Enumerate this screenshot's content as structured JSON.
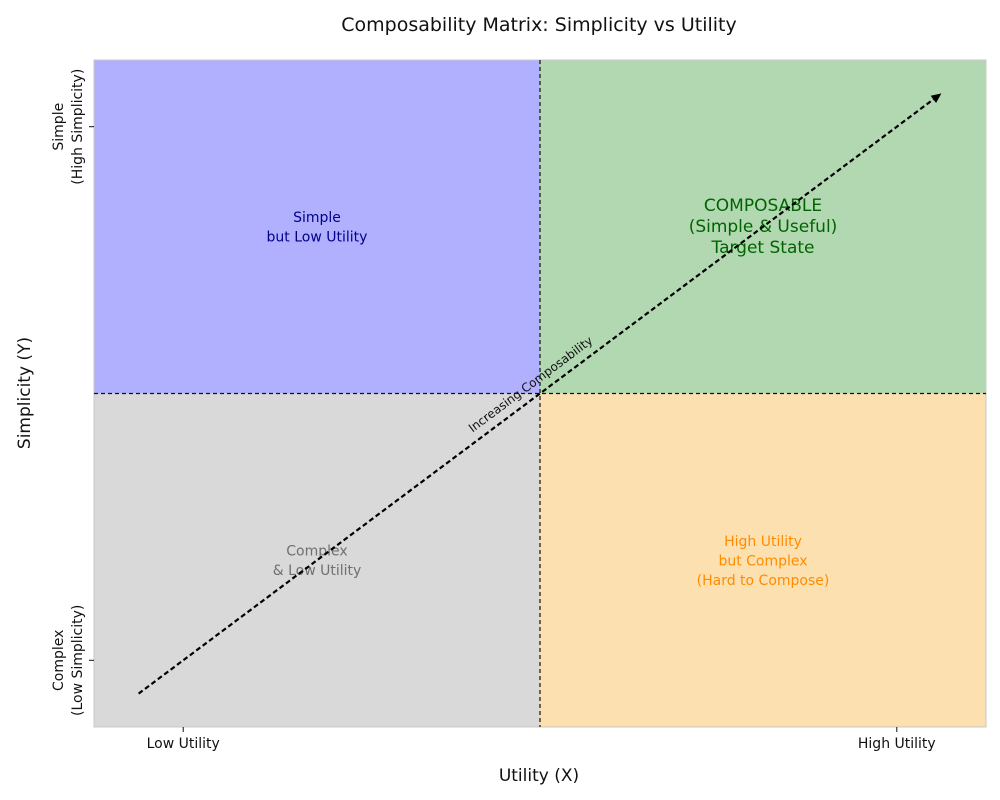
{
  "chart_data": {
    "type": "quadrant",
    "title": "Composability Matrix: Simplicity vs Utility",
    "xlabel": "Utility (X)",
    "ylabel": "Simplicity (Y)",
    "xlim": [
      0,
      10
    ],
    "ylim": [
      0,
      10
    ],
    "divider": {
      "x": 5,
      "y": 5
    },
    "x_ticks": [
      {
        "value": 1,
        "label": "Low Utility"
      },
      {
        "value": 9,
        "label": "High Utility"
      }
    ],
    "y_ticks": [
      {
        "value": 1,
        "lines": [
          "Complex",
          "(Low Simplicity)"
        ]
      },
      {
        "value": 9,
        "lines": [
          "Simple",
          "(High Simplicity)"
        ]
      }
    ],
    "quadrants": [
      {
        "id": "top-left",
        "x": [
          0,
          5
        ],
        "y": [
          5,
          10
        ],
        "fill": "#b0b0ff",
        "text_color": "#00008b",
        "text_x": 2.5,
        "text_y": 7.5,
        "lines": [
          "Simple",
          "but Low Utility"
        ],
        "emphasis": false
      },
      {
        "id": "top-right",
        "x": [
          5,
          10
        ],
        "y": [
          5,
          10
        ],
        "fill": "#b2d8b2",
        "text_color": "#006400",
        "text_x": 7.5,
        "text_y": 7.5,
        "lines": [
          "COMPOSABLE",
          "(Simple & Useful)",
          "Target State"
        ],
        "emphasis": true
      },
      {
        "id": "bottom-left",
        "x": [
          0,
          5
        ],
        "y": [
          0,
          5
        ],
        "fill": "#d9d9d9",
        "text_color": "#707070",
        "text_x": 2.5,
        "text_y": 2.5,
        "lines": [
          "Complex",
          "& Low Utility"
        ],
        "emphasis": false
      },
      {
        "id": "bottom-right",
        "x": [
          5,
          10
        ],
        "y": [
          0,
          5
        ],
        "fill": "#fde0b0",
        "text_color": "#ff8c00",
        "text_x": 7.5,
        "text_y": 2.5,
        "lines": [
          "High Utility",
          "but Complex",
          "(Hard to Compose)"
        ],
        "emphasis": false
      }
    ],
    "arrow": {
      "from": [
        0.5,
        0.5
      ],
      "to": [
        9.5,
        9.5
      ],
      "label": "Increasing Composability",
      "label_at": [
        5,
        5
      ]
    },
    "grid": false
  }
}
